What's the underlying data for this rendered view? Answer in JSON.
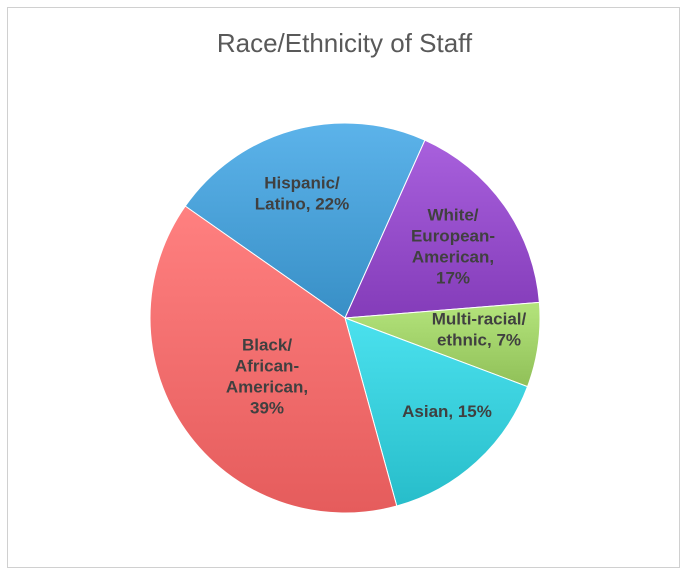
{
  "chart_data": {
    "type": "pie",
    "title": "Race/Ethnicity of Staff",
    "slices": [
      {
        "label": "Hispanic/ Latino, 22%",
        "lines": [
          "Hispanic/",
          "Latino, 22%"
        ],
        "value": 22,
        "color": "#4ea5dc"
      },
      {
        "label": "White/ European-American, 17%",
        "lines": [
          "White/",
          "European-",
          "American,",
          "17%"
        ],
        "value": 17,
        "color": "#9a52cf"
      },
      {
        "label": "Multi-racial/ ethnic, 7%",
        "lines": [
          "Multi-racial/",
          "ethnic, 7%"
        ],
        "value": 7,
        "color": "#a6d66e"
      },
      {
        "label": "Asian, 15%",
        "lines": [
          "Asian, 15%"
        ],
        "value": 15,
        "color": "#3dd3e0"
      },
      {
        "label": "Black/ African-American, 39%",
        "lines": [
          "Black/",
          "African-",
          "American,",
          "39%"
        ],
        "value": 39,
        "color": "#fb7272"
      }
    ],
    "legend": "none"
  }
}
